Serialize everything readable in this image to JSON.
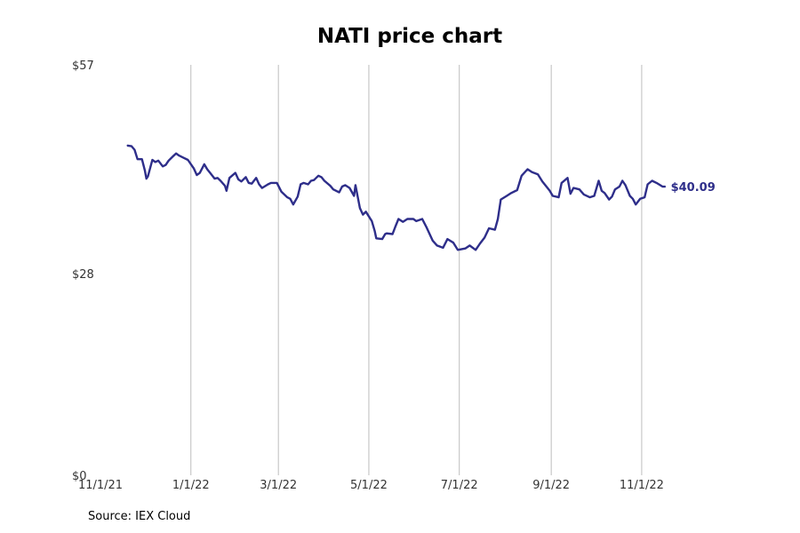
{
  "chart_data": {
    "type": "line",
    "title": "NATI price chart",
    "source": "Source: IEX Cloud",
    "color": "#2e2e8a",
    "x_domain": [
      "2021-11-01",
      "2022-12-31"
    ],
    "ylim": [
      0,
      57
    ],
    "y_ticks": [
      {
        "value": 0,
        "label": "$0"
      },
      {
        "value": 28,
        "label": "$28"
      },
      {
        "value": 57,
        "label": "$57"
      }
    ],
    "x_ticks": [
      {
        "date": "2021-11-01",
        "label": "11/1/21",
        "grid": false
      },
      {
        "date": "2022-01-01",
        "label": "1/1/22",
        "grid": true
      },
      {
        "date": "2022-03-01",
        "label": "3/1/22",
        "grid": true
      },
      {
        "date": "2022-05-01",
        "label": "5/1/22",
        "grid": true
      },
      {
        "date": "2022-07-01",
        "label": "7/1/22",
        "grid": true
      },
      {
        "date": "2022-09-01",
        "label": "9/1/22",
        "grid": true
      },
      {
        "date": "2022-11-01",
        "label": "11/1/22",
        "grid": true
      }
    ],
    "last_value_label": "$40.09",
    "series": [
      {
        "values": [
          [
            "2021-11-19",
            45.8
          ],
          [
            "2021-11-22",
            45.7
          ],
          [
            "2021-11-24",
            45.2
          ],
          [
            "2021-11-26",
            43.9
          ],
          [
            "2021-11-29",
            43.9
          ],
          [
            "2021-12-01",
            42.3
          ],
          [
            "2021-12-02",
            41.2
          ],
          [
            "2021-12-03",
            41.5
          ],
          [
            "2021-12-06",
            43.8
          ],
          [
            "2021-12-08",
            43.5
          ],
          [
            "2021-12-10",
            43.7
          ],
          [
            "2021-12-13",
            42.9
          ],
          [
            "2021-12-15",
            43.1
          ],
          [
            "2021-12-17",
            43.7
          ],
          [
            "2021-12-20",
            44.3
          ],
          [
            "2021-12-22",
            44.7
          ],
          [
            "2021-12-24",
            44.4
          ],
          [
            "2021-12-27",
            44.1
          ],
          [
            "2021-12-30",
            43.8
          ],
          [
            "2022-01-03",
            42.6
          ],
          [
            "2022-01-05",
            41.7
          ],
          [
            "2022-01-07",
            42.0
          ],
          [
            "2022-01-10",
            43.2
          ],
          [
            "2022-01-12",
            42.5
          ],
          [
            "2022-01-14",
            42.0
          ],
          [
            "2022-01-17",
            41.2
          ],
          [
            "2022-01-19",
            41.3
          ],
          [
            "2022-01-21",
            40.9
          ],
          [
            "2022-01-24",
            40.2
          ],
          [
            "2022-01-25",
            39.5
          ],
          [
            "2022-01-27",
            41.3
          ],
          [
            "2022-01-31",
            42.0
          ],
          [
            "2022-02-02",
            41.1
          ],
          [
            "2022-02-04",
            40.8
          ],
          [
            "2022-02-07",
            41.4
          ],
          [
            "2022-02-09",
            40.6
          ],
          [
            "2022-02-11",
            40.5
          ],
          [
            "2022-02-14",
            41.3
          ],
          [
            "2022-02-16",
            40.4
          ],
          [
            "2022-02-18",
            39.9
          ],
          [
            "2022-02-22",
            40.4
          ],
          [
            "2022-02-24",
            40.6
          ],
          [
            "2022-02-28",
            40.6
          ],
          [
            "2022-03-01",
            40.2
          ],
          [
            "2022-03-03",
            39.4
          ],
          [
            "2022-03-07",
            38.6
          ],
          [
            "2022-03-09",
            38.4
          ],
          [
            "2022-03-11",
            37.6
          ],
          [
            "2022-03-14",
            38.7
          ],
          [
            "2022-03-16",
            40.4
          ],
          [
            "2022-03-18",
            40.6
          ],
          [
            "2022-03-21",
            40.4
          ],
          [
            "2022-03-23",
            40.9
          ],
          [
            "2022-03-25",
            41.0
          ],
          [
            "2022-03-28",
            41.6
          ],
          [
            "2022-03-30",
            41.4
          ],
          [
            "2022-04-01",
            40.9
          ],
          [
            "2022-04-05",
            40.2
          ],
          [
            "2022-04-07",
            39.7
          ],
          [
            "2022-04-11",
            39.3
          ],
          [
            "2022-04-13",
            40.1
          ],
          [
            "2022-04-15",
            40.3
          ],
          [
            "2022-04-18",
            39.9
          ],
          [
            "2022-04-21",
            38.8
          ],
          [
            "2022-04-22",
            40.3
          ],
          [
            "2022-04-25",
            37.1
          ],
          [
            "2022-04-27",
            36.2
          ],
          [
            "2022-04-29",
            36.6
          ],
          [
            "2022-05-03",
            35.3
          ],
          [
            "2022-05-05",
            33.9
          ],
          [
            "2022-05-06",
            32.9
          ],
          [
            "2022-05-10",
            32.8
          ],
          [
            "2022-05-12",
            33.5
          ],
          [
            "2022-05-13",
            33.6
          ],
          [
            "2022-05-17",
            33.5
          ],
          [
            "2022-05-19",
            34.6
          ],
          [
            "2022-05-21",
            35.6
          ],
          [
            "2022-05-24",
            35.2
          ],
          [
            "2022-05-27",
            35.6
          ],
          [
            "2022-05-31",
            35.6
          ],
          [
            "2022-06-02",
            35.3
          ],
          [
            "2022-06-06",
            35.6
          ],
          [
            "2022-06-09",
            34.4
          ],
          [
            "2022-06-13",
            32.6
          ],
          [
            "2022-06-16",
            31.9
          ],
          [
            "2022-06-20",
            31.6
          ],
          [
            "2022-06-23",
            32.8
          ],
          [
            "2022-06-27",
            32.3
          ],
          [
            "2022-06-30",
            31.3
          ],
          [
            "2022-07-05",
            31.5
          ],
          [
            "2022-07-08",
            31.9
          ],
          [
            "2022-07-12",
            31.3
          ],
          [
            "2022-07-15",
            32.2
          ],
          [
            "2022-07-18",
            33.0
          ],
          [
            "2022-07-21",
            34.3
          ],
          [
            "2022-07-25",
            34.1
          ],
          [
            "2022-07-27",
            35.6
          ],
          [
            "2022-07-29",
            38.3
          ],
          [
            "2022-08-02",
            38.8
          ],
          [
            "2022-08-05",
            39.2
          ],
          [
            "2022-08-09",
            39.6
          ],
          [
            "2022-08-12",
            41.6
          ],
          [
            "2022-08-16",
            42.5
          ],
          [
            "2022-08-19",
            42.1
          ],
          [
            "2022-08-23",
            41.8
          ],
          [
            "2022-08-26",
            40.8
          ],
          [
            "2022-08-31",
            39.5
          ],
          [
            "2022-09-02",
            38.8
          ],
          [
            "2022-09-06",
            38.6
          ],
          [
            "2022-09-08",
            40.6
          ],
          [
            "2022-09-12",
            41.3
          ],
          [
            "2022-09-14",
            39.1
          ],
          [
            "2022-09-16",
            39.9
          ],
          [
            "2022-09-20",
            39.7
          ],
          [
            "2022-09-23",
            39.0
          ],
          [
            "2022-09-27",
            38.6
          ],
          [
            "2022-09-30",
            38.8
          ],
          [
            "2022-10-03",
            40.9
          ],
          [
            "2022-10-05",
            39.5
          ],
          [
            "2022-10-07",
            39.2
          ],
          [
            "2022-10-10",
            38.3
          ],
          [
            "2022-10-12",
            38.7
          ],
          [
            "2022-10-14",
            39.7
          ],
          [
            "2022-10-17",
            40.1
          ],
          [
            "2022-10-19",
            40.9
          ],
          [
            "2022-10-21",
            40.3
          ],
          [
            "2022-10-24",
            38.8
          ],
          [
            "2022-10-26",
            38.4
          ],
          [
            "2022-10-28",
            37.6
          ],
          [
            "2022-10-31",
            38.4
          ],
          [
            "2022-11-03",
            38.6
          ],
          [
            "2022-11-05",
            40.4
          ],
          [
            "2022-11-08",
            40.9
          ],
          [
            "2022-11-11",
            40.6
          ],
          [
            "2022-11-15",
            40.1
          ],
          [
            "2022-11-17",
            40.09
          ]
        ]
      }
    ]
  }
}
